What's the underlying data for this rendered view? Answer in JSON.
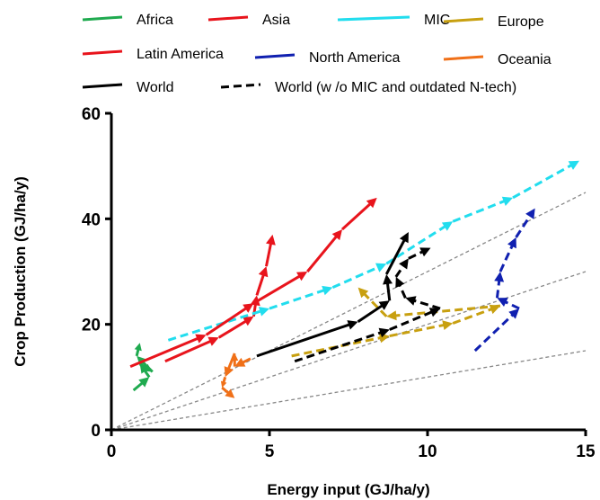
{
  "chart_data": {
    "type": "line",
    "xlabel": "Energy input (GJ/ha/y)",
    "ylabel": "Crop Production (GJ/ha/y)",
    "xlim": [
      0,
      15
    ],
    "ylim": [
      0,
      60
    ],
    "xticks": [
      0,
      5,
      10,
      15
    ],
    "yticks": [
      0,
      20,
      40,
      60
    ],
    "grid": false,
    "legend_position": "top",
    "reference_lines": [
      {
        "slope": 1,
        "points": [
          [
            0,
            0
          ],
          [
            15,
            15
          ]
        ],
        "color": "#888888"
      },
      {
        "slope": 2,
        "points": [
          [
            0,
            0
          ],
          [
            15,
            30
          ]
        ],
        "color": "#888888"
      },
      {
        "slope": 3,
        "points": [
          [
            0,
            0
          ],
          [
            15,
            45
          ]
        ],
        "color": "#888888"
      }
    ],
    "series": [
      {
        "name": "Africa",
        "color": "#1faa4f",
        "dash": "solid",
        "points": [
          [
            0.7,
            7.5
          ],
          [
            1.2,
            10
          ],
          [
            0.9,
            12.5
          ],
          [
            1.3,
            11
          ],
          [
            0.8,
            14
          ],
          [
            0.9,
            16.5
          ]
        ]
      },
      {
        "name": "Asia",
        "color": "#e8141c",
        "dash": "solid",
        "points": [
          [
            1.7,
            13
          ],
          [
            3.4,
            17.5
          ],
          [
            4.5,
            21.5
          ],
          [
            4.6,
            25.5
          ],
          [
            4.9,
            31
          ],
          [
            5.1,
            37
          ]
        ]
      },
      {
        "name": "MIC",
        "color": "#22ddee",
        "dash": "dashed",
        "points": [
          [
            1.8,
            17
          ],
          [
            5.0,
            23
          ],
          [
            7.0,
            27
          ],
          [
            8.7,
            31.5
          ],
          [
            10.8,
            39.5
          ],
          [
            12.7,
            44
          ],
          [
            14.8,
            51
          ]
        ]
      },
      {
        "name": "Europe",
        "color": "#c8a010",
        "dash": "dashed",
        "points": [
          [
            5.7,
            14
          ],
          [
            8.8,
            17.8
          ],
          [
            10.8,
            20.2
          ],
          [
            12.3,
            23.5
          ],
          [
            8.7,
            21.5
          ],
          [
            7.8,
            27
          ]
        ]
      },
      {
        "name": "Latin America",
        "color": "#e8141c",
        "dash": "solid",
        "points": [
          [
            0.6,
            12
          ],
          [
            3.0,
            18
          ],
          [
            4.5,
            24
          ],
          [
            6.2,
            30
          ],
          [
            7.3,
            38
          ],
          [
            8.4,
            44
          ]
        ]
      },
      {
        "name": "North America",
        "color": "#1020b0",
        "dash": "dashed",
        "points": [
          [
            11.5,
            15
          ],
          [
            12.9,
            23
          ],
          [
            12.2,
            25
          ],
          [
            12.3,
            30
          ],
          [
            12.8,
            36.5
          ],
          [
            13.4,
            42
          ]
        ]
      },
      {
        "name": "Oceania",
        "color": "#f07018",
        "dash": "solid",
        "points": [
          [
            4.4,
            13.5
          ],
          [
            3.9,
            12
          ],
          [
            3.9,
            14.5
          ],
          [
            3.6,
            10
          ],
          [
            3.5,
            8
          ],
          [
            3.9,
            6
          ]
        ]
      },
      {
        "name": "World",
        "color": "#000000",
        "dash": "solid",
        "points": [
          [
            4.6,
            14
          ],
          [
            7.8,
            20.5
          ],
          [
            8.8,
            24.5
          ],
          [
            8.7,
            29.5
          ],
          [
            9.4,
            37.5
          ]
        ]
      },
      {
        "name": "World (w /o MIC and outdated N-tech)",
        "color": "#000000",
        "dash": "dashed",
        "points": [
          [
            5.8,
            13
          ],
          [
            8.8,
            19
          ],
          [
            10.4,
            23
          ],
          [
            9.3,
            25
          ],
          [
            9.0,
            29
          ],
          [
            9.4,
            32.5
          ],
          [
            10.1,
            34.5
          ]
        ]
      }
    ],
    "legend_order": [
      "Africa",
      "Asia",
      "MIC",
      "Europe",
      "Latin America",
      "North America",
      "Oceania",
      "World",
      "World (w /o MIC and outdated N-tech)"
    ]
  }
}
